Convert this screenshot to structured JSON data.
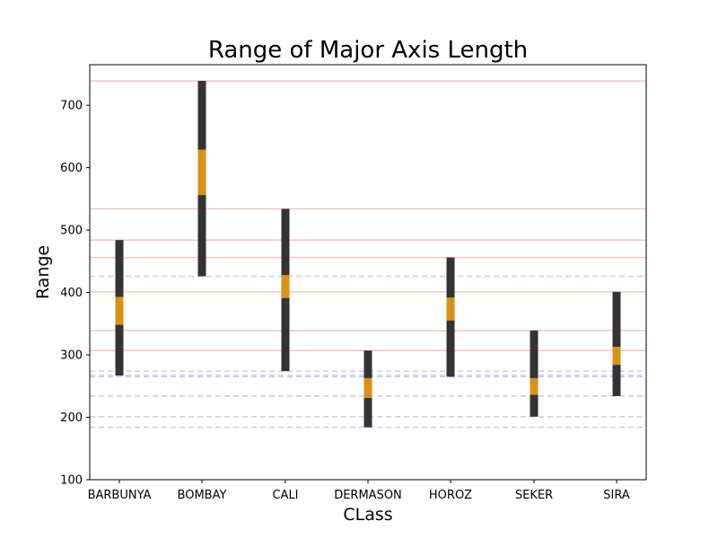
{
  "chart_data": {
    "type": "range",
    "title": "Range of Major Axis Length",
    "xlabel": "CLass",
    "ylabel": "Range",
    "ylim": [
      100,
      765
    ],
    "yticks": [
      100,
      200,
      300,
      400,
      500,
      600,
      700
    ],
    "categories": [
      "BARBUNYA",
      "BOMBAY",
      "CALI",
      "DERMASON",
      "HOROZ",
      "SEKER",
      "SIRA"
    ],
    "series": [
      {
        "category": "BARBUNYA",
        "min": 267,
        "max": 484,
        "iqr_low": 348,
        "iqr_high": 393
      },
      {
        "category": "BOMBAY",
        "min": 426,
        "max": 739,
        "iqr_low": 556,
        "iqr_high": 629
      },
      {
        "category": "CALI",
        "min": 274,
        "max": 534,
        "iqr_low": 391,
        "iqr_high": 428
      },
      {
        "category": "DERMASON",
        "min": 184,
        "max": 307,
        "iqr_low": 231,
        "iqr_high": 263
      },
      {
        "category": "HOROZ",
        "min": 265,
        "max": 456,
        "iqr_low": 355,
        "iqr_high": 392
      },
      {
        "category": "SEKER",
        "min": 201,
        "max": 339,
        "iqr_low": 236,
        "iqr_high": 263
      },
      {
        "category": "SIRA",
        "min": 234,
        "max": 401,
        "iqr_low": 284,
        "iqr_high": 313
      }
    ],
    "max_reference_lines": [
      739,
      534,
      484,
      456,
      401,
      339,
      307
    ],
    "min_reference_lines": [
      426,
      274,
      267,
      265,
      234,
      201,
      184
    ],
    "colors": {
      "bar": "#333333",
      "iqr": "#d99116",
      "max_line": "#f4c5c0",
      "min_line": "#c9c9ef",
      "frame": "#000000"
    },
    "grid": false
  }
}
